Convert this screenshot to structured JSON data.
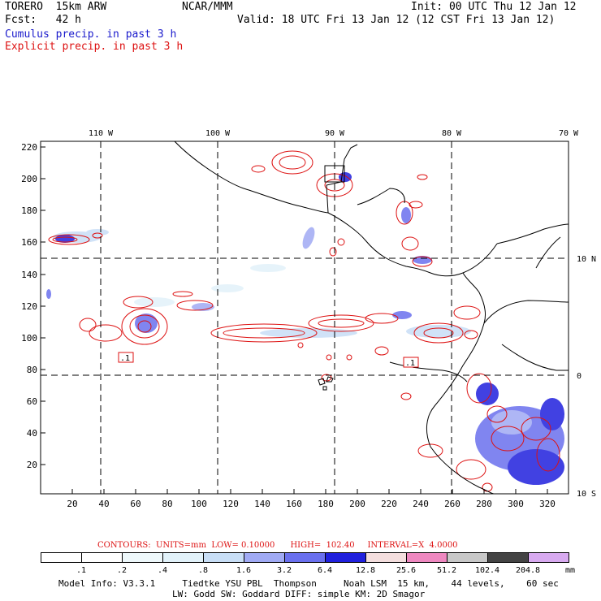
{
  "header": {
    "model": "TORERO  15km ARW",
    "org": "NCAR/MMM",
    "init": "Init: 00 UTC Thu 12 Jan 12",
    "fcst": "Fcst:   42 h",
    "valid": "Valid: 18 UTC Fri 13 Jan 12 (12 CST Fri 13 Jan 12)",
    "legend_cumulus": "Cumulus precip. in past 3 h",
    "legend_explicit": "Explicit precip. in past 3 h"
  },
  "colors": {
    "cumulus": "#1a1acc",
    "explicit": "#dd1111",
    "coast": "#000000"
  },
  "map": {
    "lon_labels": [
      "110 W",
      "100 W",
      "90 W",
      "80 W",
      "70 W"
    ],
    "lat_labels": [
      "10 N",
      "0",
      "10 S"
    ],
    "y_ticks": [
      "220",
      "200",
      "180",
      "160",
      "140",
      "120",
      "100",
      "80",
      "60",
      "40",
      "20"
    ],
    "x_ticks": [
      "20",
      "40",
      "60",
      "80",
      "100",
      "120",
      "140",
      "160",
      "180",
      "200",
      "220",
      "240",
      "260",
      "280",
      "300",
      "320"
    ],
    "contour_labels": [
      ".1",
      ".1"
    ]
  },
  "contours_info": {
    "text": "CONTOURS:  UNITS=mm  LOW= 0.10000      HIGH=  102.40     INTERVAL=X  4.0000"
  },
  "colorbar": {
    "labels": [
      ".1",
      ".2",
      ".4",
      ".8",
      "1.6",
      "3.2",
      "6.4",
      "12.8",
      "25.6",
      "51.2",
      "102.4",
      "204.8"
    ],
    "unit": "mm",
    "colors": [
      "#ffffff",
      "#ffffff",
      "#eef8fb",
      "#e2f2fa",
      "#c8def6",
      "#a0aaf4",
      "#6a70ee",
      "#2020dd",
      "#f4dede",
      "#ee88c0",
      "#c8c8c8",
      "#444444",
      "#d8aaf0"
    ]
  },
  "model_info": {
    "line1": "Model Info: V3.3.1     Tiedtke YSU PBL  Thompson     Noah LSM  15 km,    44 levels,    60 sec",
    "line2": "LW: Godd SW: Goddard DIFF: simple KM: 2D Smagor"
  }
}
